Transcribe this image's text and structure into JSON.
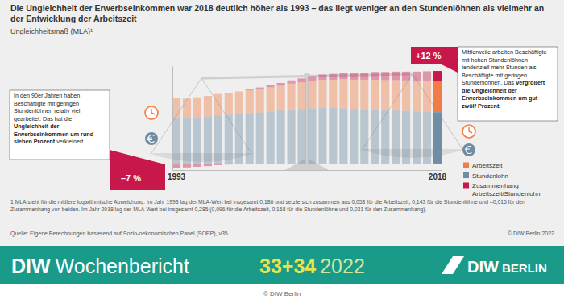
{
  "chart_data": {
    "type": "bar",
    "stacked": true,
    "tick_labels": "x",
    "legend": "lower right",
    "title": "Die Ungleichheit der Erwerbseinkommen war 2018 deutlich höher als 1993 – das liegt weniger an den Stundenlöhnen als vielmehr an der Entwicklung der Arbeitszeit",
    "subtitle": "Ungleichheitsmaß (MLA)¹",
    "categories": [
      "1993",
      null,
      null,
      null,
      null,
      null,
      null,
      null,
      null,
      null,
      null,
      null,
      null,
      null,
      null,
      null,
      null,
      null,
      null,
      null,
      null,
      null,
      null,
      null,
      null,
      "2018"
    ],
    "ylim": [
      -0.02,
      0.3
    ],
    "series": [
      {
        "name": "Arbeitszeit",
        "color": "#f07d45",
        "values": [
          0.058,
          0.06,
          0.062,
          0.063,
          0.066,
          0.068,
          0.07,
          0.071,
          0.073,
          0.075,
          0.077,
          0.08,
          0.082,
          0.085,
          0.086,
          0.087,
          0.09,
          0.09,
          0.091,
          0.092,
          0.093,
          0.094,
          0.094,
          0.095,
          0.095,
          0.096
        ]
      },
      {
        "name": "Stundenlohn",
        "color": "#6f8da3",
        "values": [
          0.143,
          0.14,
          0.142,
          0.145,
          0.148,
          0.15,
          0.152,
          0.155,
          0.157,
          0.16,
          0.163,
          0.166,
          0.168,
          0.17,
          0.172,
          0.171,
          0.17,
          0.168,
          0.167,
          0.166,
          0.164,
          0.163,
          0.162,
          0.16,
          0.159,
          0.158
        ]
      },
      {
        "name": "Zusammenhang Arbeitszeit/Stundenlohn",
        "color": "#c8174a",
        "values": [
          -0.015,
          -0.012,
          -0.01,
          -0.008,
          -0.005,
          -0.003,
          0.0,
          0.002,
          0.004,
          0.006,
          0.008,
          0.01,
          0.012,
          0.014,
          0.016,
          0.018,
          0.019,
          0.021,
          0.022,
          0.024,
          0.025,
          0.026,
          0.027,
          0.028,
          0.03,
          0.031
        ]
      }
    ],
    "annotations": [
      {
        "label": "–7 %",
        "text": "In den 90er Jahren haben Beschäftigte mit geringen Stundenlöhnen relativ viel gearbeitet. Das hat die",
        "highlight": "Ungleichheit der Erwerbseinkommen um rund sieben Prozent",
        "text_end": "verkleinert."
      },
      {
        "label": "+12 %",
        "text": "Mittlerweile arbeiten Beschäftigte mit hohen Stundenlöhnen tendenziell mehr Stunden als Beschäftigte mit geringen Stundenlöhnen. Das",
        "highlight": "vergrößert die Ungleichheit der Erwerbseinkommen um gut zwölf Prozent."
      }
    ],
    "footnote": "1 MLA steht für die mittlere logarithmische Abweichung. Im Jahr 1993 lag der MLA-Wert bei insgesamt 0,186 und setzte sich zusammen aus 0,058 für die Arbeitszeit, 0,143 für die Stundenlöhne und –0,015 für den Zusammenhang von beiden. Im Jahr 2018 lag der MLA-Wert bei insgesamt 0,285 (0,096 für die Arbeitszeit, 0,158 für die Stundenlöhne und 0,031 für den Zusammenhang).",
    "source": "Quelle: Eigene Berechnungen basierend auf Sozio-oekonomischen Panel (SOEP), v35.",
    "copyright": "© DIW Berlin 2022"
  },
  "banner": {
    "brand": "DIW",
    "publication": "Wochenbericht",
    "issue": "33+34",
    "year": "2022",
    "logo_main": "DIW",
    "logo_sub": "BERLIN",
    "credit": "© DIW Berlin"
  }
}
